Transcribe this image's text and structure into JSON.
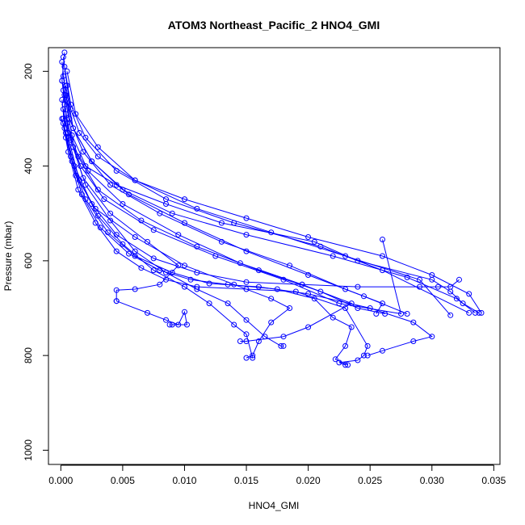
{
  "chart_data": {
    "type": "line",
    "title": "ATOM3 Northeast_Pacific_2 HNO4_GMI",
    "xlabel": "HNO4_GMI",
    "ylabel": "Pressure (mbar)",
    "xlim": [
      -0.001,
      0.0355
    ],
    "ylim": [
      1030,
      150
    ],
    "y_reversed": true,
    "x_ticks": [
      0.0,
      0.005,
      0.01,
      0.015,
      0.02,
      0.025,
      0.03,
      0.035
    ],
    "x_tick_labels": [
      "0.000",
      "0.005",
      "0.010",
      "0.015",
      "0.020",
      "0.025",
      "0.030",
      "0.035"
    ],
    "y_ticks": [
      200,
      400,
      600,
      800,
      1000
    ],
    "y_tick_labels": [
      "200",
      "400",
      "600",
      "800",
      "1000"
    ],
    "grid": false,
    "marker": "open-circle",
    "color": "#0000ff",
    "series": [
      {
        "x": [
          0.0003,
          0.0001,
          0.0004,
          0.0002,
          0.0006,
          0.001,
          0.002,
          0.0045,
          0.0085,
          0.013,
          0.0205,
          0.024,
          0.03,
          0.0315,
          0.0325,
          0.0338
        ],
        "y": [
          160,
          220,
          260,
          300,
          330,
          360,
          400,
          440,
          480,
          520,
          560,
          600,
          640,
          665,
          690,
          710
        ]
      },
      {
        "x": [
          0.0002,
          0.0005,
          0.0008,
          0.0015,
          0.003,
          0.006,
          0.01,
          0.015,
          0.02,
          0.026,
          0.03,
          0.033,
          0.034
        ],
        "y": [
          170,
          230,
          280,
          330,
          380,
          430,
          470,
          510,
          550,
          590,
          630,
          670,
          710
        ]
      },
      {
        "x": [
          0.0001,
          0.0004,
          0.001,
          0.0025,
          0.005,
          0.009,
          0.015,
          0.022,
          0.028,
          0.032,
          0.0335
        ],
        "y": [
          180,
          250,
          320,
          390,
          450,
          500,
          545,
          590,
          635,
          680,
          710
        ]
      },
      {
        "x": [
          0.0003,
          0.0008,
          0.002,
          0.0045,
          0.0085,
          0.014,
          0.021,
          0.026,
          0.033
        ],
        "y": [
          190,
          270,
          340,
          410,
          470,
          520,
          570,
          620,
          710
        ]
      },
      {
        "x": [
          0.0005,
          0.0012,
          0.003,
          0.006,
          0.011,
          0.017,
          0.023,
          0.029,
          0.0315
        ],
        "y": [
          200,
          290,
          360,
          430,
          490,
          540,
          590,
          640,
          715
        ]
      },
      {
        "x": [
          0.0002,
          0.0007,
          0.0018,
          0.004,
          0.008,
          0.013,
          0.0185,
          0.023,
          0.026,
          0.0255
        ],
        "y": [
          210,
          300,
          370,
          440,
          500,
          560,
          610,
          660,
          690,
          712
        ]
      },
      {
        "x": [
          0.0001,
          0.0005,
          0.0014,
          0.003,
          0.0065,
          0.011,
          0.016,
          0.021,
          0.024,
          0.0262
        ],
        "y": [
          220,
          310,
          380,
          450,
          515,
          570,
          620,
          665,
          700,
          712
        ]
      },
      {
        "x": [
          0.0004,
          0.001,
          0.0025,
          0.0055,
          0.01,
          0.015,
          0.02,
          0.0245,
          0.028
        ],
        "y": [
          230,
          320,
          390,
          460,
          520,
          580,
          630,
          675,
          712
        ]
      },
      {
        "x": [
          0.0002,
          0.0006,
          0.0016,
          0.0035,
          0.0075,
          0.0125,
          0.018,
          0.0225,
          0.0275,
          0.026
        ],
        "y": [
          240,
          330,
          400,
          470,
          535,
          590,
          640,
          690,
          712,
          555
        ]
      },
      {
        "x": [
          0.0003,
          0.0009,
          0.0022,
          0.005,
          0.0095,
          0.0145,
          0.0195,
          0.0235,
          0.02,
          0.018,
          0.015,
          0.0145
        ],
        "y": [
          250,
          335,
          410,
          480,
          545,
          605,
          650,
          690,
          740,
          760,
          770,
          770
        ]
      },
      {
        "x": [
          0.0001,
          0.0004,
          0.0012,
          0.0028,
          0.006,
          0.01,
          0.014,
          0.017,
          0.0185,
          0.017,
          0.016,
          0.0155,
          0.015
        ],
        "y": [
          260,
          340,
          420,
          490,
          550,
          610,
          650,
          680,
          700,
          730,
          770,
          800,
          805
        ]
      },
      {
        "x": [
          0.0003,
          0.0008,
          0.0018,
          0.004,
          0.007,
          0.0095,
          0.008,
          0.006,
          0.0045,
          0.0045
        ],
        "y": [
          270,
          345,
          425,
          500,
          560,
          610,
          650,
          660,
          662,
          685
        ]
      },
      {
        "x": [
          0.0045,
          0.007,
          0.0085,
          0.0095,
          0.01,
          0.0102,
          0.009,
          0.0088
        ],
        "y": [
          685,
          710,
          725,
          735,
          708,
          735,
          735,
          735
        ]
      },
      {
        "x": [
          0.0002,
          0.0007,
          0.0015,
          0.003,
          0.005,
          0.0075,
          0.01,
          0.012,
          0.014,
          0.015,
          0.0155
        ],
        "y": [
          280,
          350,
          430,
          505,
          565,
          620,
          655,
          690,
          735,
          755,
          805
        ]
      },
      {
        "x": [
          0.0004,
          0.001,
          0.002,
          0.004,
          0.006,
          0.0085,
          0.011,
          0.0135,
          0.015,
          0.0165,
          0.0178,
          0.018
        ],
        "y": [
          290,
          360,
          440,
          515,
          580,
          625,
          660,
          690,
          725,
          760,
          780,
          780
        ]
      },
      {
        "x": [
          0.0001,
          0.0006,
          0.0014,
          0.0028,
          0.0045,
          0.0065,
          0.0085,
          0.011,
          0.015,
          0.019,
          0.023,
          0.0248,
          0.0245,
          0.024,
          0.0225,
          0.023
        ],
        "y": [
          300,
          370,
          450,
          520,
          580,
          615,
          640,
          655,
          660,
          665,
          700,
          780,
          800,
          810,
          815,
          820
        ]
      },
      {
        "x": [
          0.0002,
          0.0008,
          0.0017,
          0.0032,
          0.0055,
          0.008,
          0.0105,
          0.0135,
          0.0175,
          0.0205,
          0.022,
          0.0235,
          0.023,
          0.0222,
          0.0232
        ],
        "y": [
          310,
          380,
          460,
          530,
          585,
          620,
          640,
          650,
          660,
          680,
          720,
          740,
          780,
          808,
          820
        ]
      },
      {
        "x": [
          0.0003,
          0.0009,
          0.002,
          0.0038,
          0.006,
          0.009,
          0.012,
          0.016,
          0.02,
          0.025,
          0.0285,
          0.03,
          0.0285,
          0.026,
          0.0248
        ],
        "y": [
          320,
          390,
          470,
          540,
          590,
          625,
          648,
          655,
          670,
          700,
          730,
          760,
          770,
          790,
          800
        ]
      },
      {
        "x": [
          0.0004,
          0.0011,
          0.0025,
          0.0045,
          0.0075,
          0.011,
          0.015,
          0.0195,
          0.024,
          0.029,
          0.0305,
          0.0315,
          0.0322
        ],
        "y": [
          330,
          400,
          480,
          545,
          595,
          625,
          645,
          650,
          655,
          655,
          655,
          655,
          640
        ]
      }
    ]
  }
}
